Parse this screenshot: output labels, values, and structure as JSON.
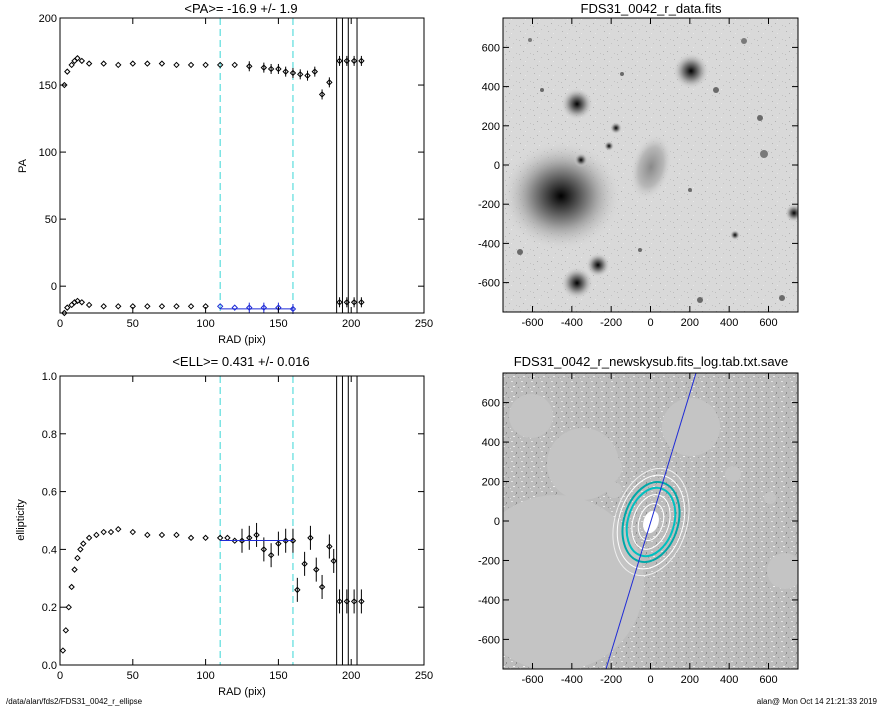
{
  "footer": {
    "left": "/data/alan/fds2/FDS31_0042_r_ellipse",
    "right": "alan@  Mon Oct 14 21:21:33 2019"
  },
  "chart_data": [
    {
      "id": "pa",
      "type": "scatter",
      "title": "<PA>= -16.9 +/-   1.9",
      "xlabel": "RAD (pix)",
      "ylabel": "PA",
      "xlim": [
        0,
        250
      ],
      "ylim": [
        -20,
        200
      ],
      "xticks": [
        "0",
        "50",
        "100",
        "150",
        "200",
        "250"
      ],
      "yticks": [
        "0",
        "50",
        "100",
        "150",
        "200"
      ],
      "vlines_dashed_cyan": [
        110,
        160
      ],
      "vlines_solid": [
        190,
        194,
        198,
        204
      ],
      "series": [
        {
          "x": [
            3,
            5,
            8,
            10,
            12,
            15,
            20,
            30,
            40,
            50,
            60,
            70,
            80,
            90,
            100,
            110,
            120,
            130,
            140,
            145,
            150,
            155,
            160,
            165,
            170,
            175,
            180,
            185
          ],
          "y": [
            150,
            160,
            165,
            168,
            170,
            168,
            166,
            166,
            165,
            166,
            166,
            166,
            165,
            165,
            165,
            165,
            165,
            164,
            163,
            162,
            162,
            160,
            159,
            158,
            157,
            160,
            143,
            152
          ]
        },
        {
          "x": [
            3,
            5,
            8,
            10,
            12,
            15,
            20,
            30,
            40,
            50,
            60,
            70,
            80,
            90,
            100,
            110,
            120,
            130,
            140,
            150,
            160
          ],
          "y": [
            -20,
            -16,
            -14,
            -12,
            -11,
            -12,
            -14,
            -15,
            -15,
            -15,
            -15,
            -15,
            -15,
            -15,
            -15,
            -15,
            -16,
            -16,
            -16,
            -16,
            -17
          ]
        },
        {
          "x": [
            192,
            197,
            202,
            207
          ],
          "y": [
            168,
            168,
            168,
            168
          ]
        },
        {
          "x": [
            192,
            197,
            202,
            207
          ],
          "y": [
            -12,
            -12,
            -12,
            -12
          ]
        }
      ],
      "fit": {
        "x": [
          110,
          160
        ],
        "y": [
          -16.9,
          -16.9
        ]
      }
    },
    {
      "id": "ell",
      "type": "scatter",
      "title": "<ELL>= 0.431 +/-  0.016",
      "xlabel": "RAD (pix)",
      "ylabel": "ellipticity",
      "xlim": [
        0,
        250
      ],
      "ylim": [
        0,
        1
      ],
      "xticks": [
        "0",
        "50",
        "100",
        "150",
        "200",
        "250"
      ],
      "yticks": [
        "0.0",
        "0.2",
        "0.4",
        "0.6",
        "0.8",
        "1.0"
      ],
      "vlines_dashed_cyan": [
        110,
        160
      ],
      "vlines_solid": [
        190,
        194,
        198,
        204
      ],
      "series": [
        {
          "x": [
            2,
            4,
            6,
            8,
            10,
            12,
            14,
            16,
            20,
            25,
            30,
            35,
            40,
            50,
            60,
            70,
            80,
            90,
            100,
            110,
            115,
            120,
            125,
            130,
            135,
            140,
            145,
            150,
            155,
            160,
            163,
            168,
            172,
            176,
            180,
            185,
            188
          ],
          "y": [
            0.05,
            0.12,
            0.2,
            0.27,
            0.33,
            0.37,
            0.4,
            0.42,
            0.44,
            0.45,
            0.46,
            0.46,
            0.47,
            0.46,
            0.45,
            0.45,
            0.45,
            0.44,
            0.44,
            0.44,
            0.44,
            0.43,
            0.43,
            0.44,
            0.45,
            0.4,
            0.38,
            0.42,
            0.43,
            0.43,
            0.26,
            0.35,
            0.44,
            0.33,
            0.27,
            0.41,
            0.36
          ]
        },
        {
          "x": [
            192,
            197,
            202,
            207
          ],
          "y": [
            0.22,
            0.22,
            0.22,
            0.22
          ]
        }
      ],
      "fit": {
        "x": [
          110,
          160
        ],
        "y": [
          0.431,
          0.431
        ]
      }
    },
    {
      "id": "data-img",
      "type": "heatmap",
      "title": "FDS31_0042_r_data.fits",
      "xlim": [
        -750,
        750
      ],
      "ylim": [
        -750,
        750
      ],
      "xticks": [
        "-600",
        "-400",
        "-200",
        "0",
        "200",
        "400",
        "600"
      ],
      "yticks": [
        "-600",
        "-400",
        "-200",
        "0",
        "200",
        "400",
        "600"
      ]
    },
    {
      "id": "sky-img",
      "type": "heatmap",
      "title": "FDS31_0042_r_newskysub.fits_log.tab.txt.save",
      "xlim": [
        -750,
        750
      ],
      "ylim": [
        -750,
        750
      ],
      "xticks": [
        "-600",
        "-400",
        "-200",
        "0",
        "200",
        "400",
        "600"
      ],
      "yticks": [
        "-600",
        "-400",
        "-200",
        "0",
        "200",
        "400",
        "600"
      ]
    }
  ]
}
